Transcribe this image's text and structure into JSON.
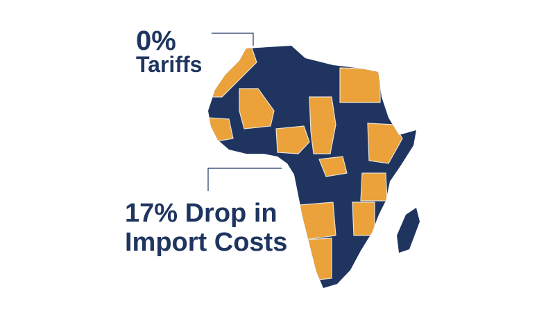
{
  "callouts": [
    {
      "lines": [
        "0%",
        "Tariffs"
      ]
    },
    {
      "lines": [
        "17% Drop in",
        "Import Costs"
      ]
    }
  ]
}
